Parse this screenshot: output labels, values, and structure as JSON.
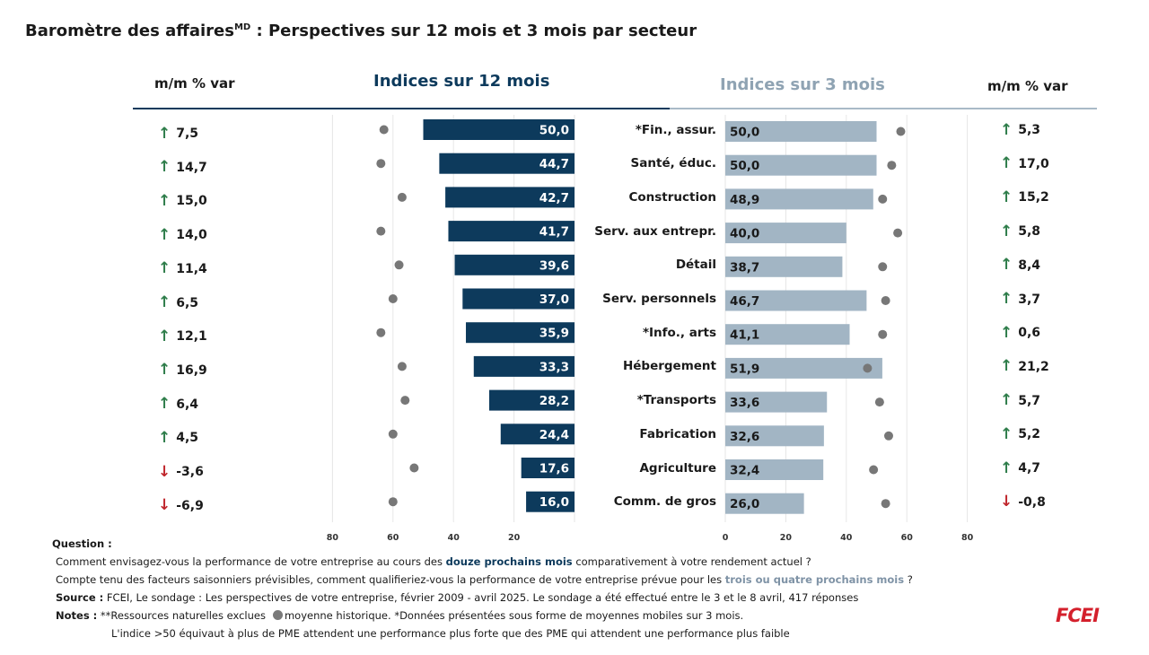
{
  "title": "Baromètre des affaires",
  "title_sup": "MD",
  "title_rest": " : Perspectives sur 12 mois et 3 mois par secteur",
  "headers": {
    "var_left": "m/m % var",
    "indices_12": "Indices sur 12 mois",
    "indices_3": "Indices sur 3 mois",
    "var_right": "m/m % var"
  },
  "colors": {
    "bar12": "#0d3a5c",
    "bar3": "#a2b5c4",
    "dot": "#777777",
    "up": "#2e7d4a",
    "down": "#c0272d"
  },
  "chart_data": {
    "type": "bar",
    "categories": [
      "*Fin., assur.",
      "Santé, éduc.",
      "Construction",
      "Serv. aux entrepr.",
      "Détail",
      "Serv. personnels",
      "*Info., arts",
      "Hébergement",
      "*Transports",
      "Fabrication",
      "Agriculture",
      "Comm. de gros"
    ],
    "left_panel": {
      "values": [
        50.0,
        44.7,
        42.7,
        41.7,
        39.6,
        37.0,
        35.9,
        33.3,
        28.2,
        24.4,
        17.6,
        16.0
      ],
      "labels": [
        "50,0",
        "44,7",
        "42,7",
        "41,7",
        "39,6",
        "37,0",
        "35,9",
        "33,3",
        "28,2",
        "24,4",
        "17,6",
        "16,0"
      ],
      "historical": [
        63,
        64,
        57,
        64,
        58,
        60,
        64,
        57,
        56,
        60,
        53,
        60
      ],
      "xticks": [
        "80",
        "60",
        "40",
        "20"
      ],
      "xlim": [
        0,
        80
      ],
      "mm_var": [
        "7,5",
        "14,7",
        "15,0",
        "14,0",
        "11,4",
        "6,5",
        "12,1",
        "16,9",
        "6,4",
        "4,5",
        "-3,6",
        "-6,9"
      ],
      "mm_dir": [
        "up",
        "up",
        "up",
        "up",
        "up",
        "up",
        "up",
        "up",
        "up",
        "up",
        "down",
        "down"
      ]
    },
    "right_panel": {
      "values": [
        50.0,
        50.0,
        48.9,
        40.0,
        38.7,
        46.7,
        41.1,
        51.9,
        33.6,
        32.6,
        32.4,
        26.0
      ],
      "labels": [
        "50,0",
        "50,0",
        "48,9",
        "40,0",
        "38,7",
        "46,7",
        "41,1",
        "51,9",
        "33,6",
        "32,6",
        "32,4",
        "26,0"
      ],
      "historical": [
        58,
        55,
        52,
        57,
        52,
        53,
        52,
        47,
        51,
        54,
        49,
        53
      ],
      "xticks": [
        "0",
        "20",
        "40",
        "60",
        "80"
      ],
      "xlim": [
        0,
        80
      ],
      "mm_var": [
        "5,3",
        "17,0",
        "15,2",
        "5,8",
        "8,4",
        "3,7",
        "0,6",
        "21,2",
        "5,7",
        "5,2",
        "4,7",
        "-0,8"
      ],
      "mm_dir": [
        "up",
        "up",
        "up",
        "up",
        "up",
        "up",
        "up",
        "up",
        "up",
        "up",
        "up",
        "down"
      ]
    }
  },
  "footer": {
    "question_label": "Question :",
    "q1_pre": "Comment envisagez-vous la performance de votre entreprise au cours des ",
    "q1_hl": "douze prochains mois",
    "q1_post": " comparativement à votre rendement actuel ?",
    "q2_pre": "Compte tenu des facteurs saisonniers prévisibles, comment qualifieriez-vous la performance  de votre entreprise prévue pour les ",
    "q2_hl": "trois ou quatre prochains mois",
    "q2_post": " ?",
    "source_label": "Source :",
    "source_text": " FCEI, Le sondage : Les perspectives de votre entreprise, février 2009 - avril 2025. Le sondage a été effectué entre le 3 et le 8 avril, 417 réponses",
    "notes_label": "Notes :",
    "notes_a": " **Ressources naturelles exclues",
    "notes_b": "moyenne historique. *Données présentées sous forme de moyennes mobiles sur 3 mois.",
    "notes_c": "L'indice >50 équivaut à plus de PME attendent une performance plus forte que des PME qui attendent une performance plus faible"
  },
  "logo": "FCEI"
}
